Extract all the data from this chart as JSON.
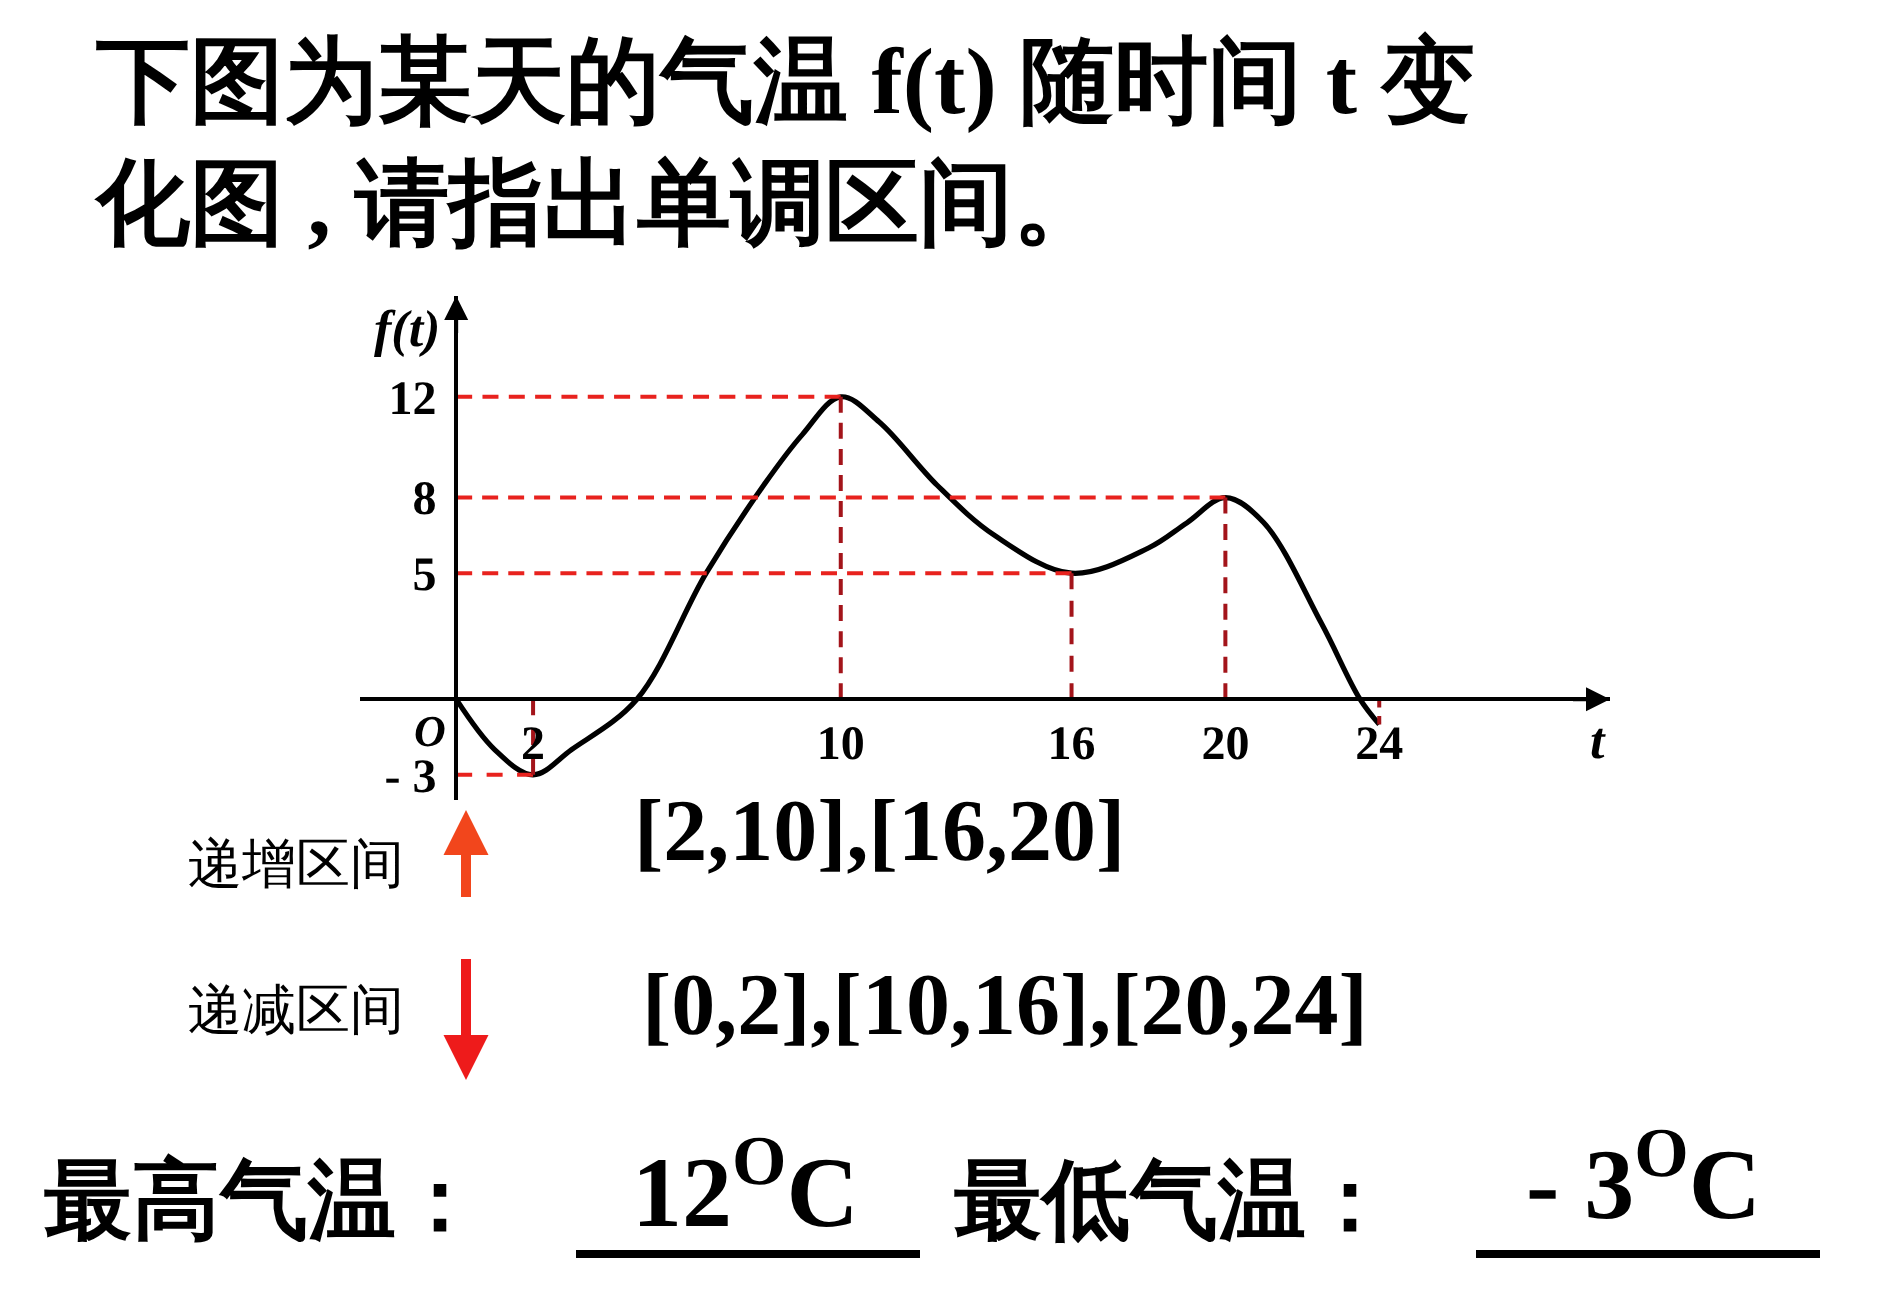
{
  "chart_data": {
    "type": "line",
    "title": "下图为某天的气温 f(t) 随时间 t 变化图 , 请指出单调区间。",
    "xlabel": "t",
    "ylabel": "f(t)",
    "x": [
      0,
      1,
      2,
      3,
      4.7,
      6.5,
      8,
      9,
      10,
      11,
      12.5,
      14,
      16,
      18,
      19,
      20,
      21,
      22.5,
      23.5,
      24
    ],
    "series": [
      {
        "color": "#000000",
        "values": [
          0,
          -2,
          -3,
          -2,
          0,
          5,
          8.5,
          10.5,
          12,
          11,
          8.5,
          6.5,
          5,
          6,
          7,
          8,
          7,
          3,
          0,
          -1
        ]
      },
      {
        "x": [
          0,
          10
        ],
        "values": [
          12,
          12
        ],
        "color": "#e8221e",
        "line_style": "dashed"
      },
      {
        "x": [
          0,
          20
        ],
        "values": [
          8,
          8
        ],
        "color": "#e8221e",
        "line_style": "dashed"
      },
      {
        "x": [
          0,
          16
        ],
        "values": [
          5,
          5
        ],
        "color": "#e8221e",
        "line_style": "dashed"
      },
      {
        "x": [
          0,
          2
        ],
        "values": [
          -3,
          -3
        ],
        "color": "#e8221e",
        "line_style": "dashed"
      },
      {
        "x": [
          2,
          2
        ],
        "values": [
          0,
          -3
        ],
        "color": "#a3141a",
        "line_style": "dashed"
      },
      {
        "x": [
          10,
          10
        ],
        "values": [
          12,
          0
        ],
        "color": "#a3141a",
        "line_style": "dashed"
      },
      {
        "x": [
          16,
          16
        ],
        "values": [
          5,
          0
        ],
        "color": "#a3141a",
        "line_style": "dashed"
      },
      {
        "x": [
          20,
          20
        ],
        "values": [
          8,
          0
        ],
        "color": "#a3141a",
        "line_style": "dashed"
      },
      {
        "x": [
          24,
          24
        ],
        "values": [
          0,
          -1
        ],
        "color": "#a3141a",
        "line_style": "dashed"
      }
    ],
    "xlim": [
      -2.5,
      30
    ],
    "ylim": [
      -4,
      16
    ],
    "xticks": [
      2,
      10,
      16,
      20,
      24
    ],
    "yticks": [
      {
        "value": -3,
        "label": "- 3"
      },
      5,
      8,
      12
    ],
    "annotations": [
      {
        "text": "O",
        "x": 0,
        "y": 0
      },
      "递增区间",
      "[2,10],[16,20]",
      "递减区间",
      "[0,2],[10,16],[20,24]",
      "最高气温：",
      "12$^{O}$C",
      "最低气温：",
      "- 3$^{O}$C"
    ]
  }
}
